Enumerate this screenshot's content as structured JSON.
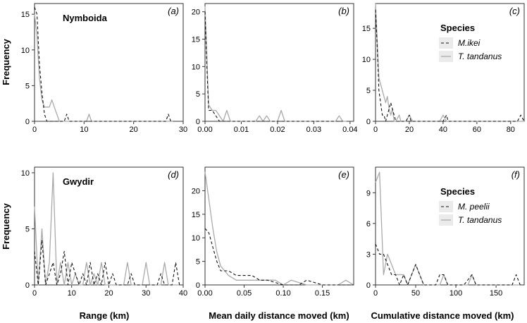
{
  "figure": {
    "ylabel_top": "Frequency",
    "ylabel_bottom": "Frequency",
    "xlabels": [
      "Range (km)",
      "Mean daily distance moved (km)",
      "Cumulative distance moved (km)"
    ]
  },
  "chart_data": [
    {
      "type": "line",
      "panel": "(a)",
      "site": "Nymboida",
      "xlim": [
        0,
        30
      ],
      "ylim": [
        0,
        16.5
      ],
      "xticks": [
        0,
        10,
        20,
        30
      ],
      "xtick_labels": [
        "0",
        "10",
        "20",
        "30"
      ],
      "yticks": [
        0,
        5,
        10,
        15
      ],
      "ytick_labels": [
        "0",
        "5",
        "10",
        "15"
      ],
      "series": [
        {
          "key": "A",
          "style": "dashed",
          "color": "#111111",
          "x": [
            0,
            0.5,
            1,
            1.5,
            2,
            2.5,
            3,
            3.5,
            4,
            4.5,
            5,
            5.5,
            6,
            6.5,
            7,
            7.5,
            8,
            8.5,
            9,
            9.5,
            10,
            10.5,
            11,
            11.5,
            12,
            26.5,
            27,
            27.5,
            28
          ],
          "y": [
            16,
            15,
            8,
            4,
            1,
            0,
            0,
            0,
            0,
            0,
            0,
            0,
            0,
            1,
            0,
            0,
            0,
            0,
            0,
            0,
            0,
            0,
            0,
            0,
            0,
            0,
            1,
            0,
            0
          ]
        },
        {
          "key": "B",
          "style": "solid",
          "color": "#aaaaaa",
          "x": [
            0,
            0.5,
            1,
            1.5,
            2,
            2.5,
            3,
            3.5,
            4,
            4.5,
            5,
            10.5,
            11,
            11.5,
            12,
            27,
            27.5,
            28
          ],
          "y": [
            15,
            12,
            6,
            3,
            2,
            2,
            2,
            3,
            2,
            1,
            0,
            0,
            1,
            0,
            0,
            0,
            0,
            0
          ]
        }
      ]
    },
    {
      "type": "line",
      "panel": "(b)",
      "xlim": [
        0,
        0.041
      ],
      "ylim": [
        0,
        21.5
      ],
      "xticks": [
        0,
        0.01,
        0.02,
        0.03,
        0.04
      ],
      "xtick_labels": [
        "0.00",
        "0.01",
        "0.02",
        "0.03",
        "0.04"
      ],
      "yticks": [
        0,
        5,
        10,
        15,
        20
      ],
      "ytick_labels": [
        "0",
        "5",
        "10",
        "15",
        "20"
      ],
      "series": [
        {
          "key": "A",
          "style": "dashed",
          "color": "#111111",
          "x": [
            0,
            0.0005,
            0.001,
            0.002,
            0.003,
            0.004,
            0.005,
            0.038
          ],
          "y": [
            20,
            10,
            2,
            2,
            1,
            0,
            0,
            0
          ]
        },
        {
          "key": "B",
          "style": "solid",
          "color": "#aaaaaa",
          "x": [
            0,
            0.0005,
            0.001,
            0.002,
            0.003,
            0.005,
            0.006,
            0.007,
            0.014,
            0.015,
            0.016,
            0.017,
            0.018,
            0.02,
            0.021,
            0.022,
            0.036,
            0.037,
            0.038,
            0.039
          ],
          "y": [
            21,
            12,
            3,
            2,
            2,
            0,
            2,
            0,
            0,
            1,
            0,
            1,
            0,
            0,
            2,
            0,
            0,
            1,
            0,
            0
          ]
        }
      ]
    },
    {
      "type": "line",
      "panel": "(c)",
      "xlim": [
        0,
        88
      ],
      "ylim": [
        0,
        19
      ],
      "xticks": [
        0,
        20,
        40,
        60,
        80
      ],
      "xtick_labels": [
        "0",
        "20",
        "40",
        "60",
        "80"
      ],
      "yticks": [
        0,
        5,
        10,
        15
      ],
      "ytick_labels": [
        "0",
        "5",
        "10",
        "15"
      ],
      "legend": {
        "title": "Species",
        "entries": [
          "M.ikei",
          "T. tandanus"
        ],
        "location": "top-right"
      },
      "series": [
        {
          "key": "A",
          "name": "M.ikei",
          "style": "dashed",
          "color": "#111111",
          "x": [
            0,
            1,
            2,
            3,
            4,
            5,
            6,
            7,
            8,
            9,
            10,
            11,
            12,
            18,
            20,
            21,
            22,
            38,
            40,
            42,
            43,
            44,
            84,
            86,
            88
          ],
          "y": [
            18,
            12,
            5,
            3,
            1,
            1,
            0,
            1,
            2,
            3,
            2,
            1,
            0,
            0,
            1,
            0,
            0,
            0,
            0,
            1,
            0,
            0,
            0,
            1,
            0
          ]
        },
        {
          "key": "B",
          "name": "T. tandanus",
          "style": "solid",
          "color": "#aaaaaa",
          "x": [
            0,
            1,
            2,
            3,
            4,
            5,
            6,
            7,
            8,
            9,
            10,
            11,
            12,
            14,
            15,
            16,
            18,
            20,
            22,
            23,
            38,
            40,
            42,
            44,
            88
          ],
          "y": [
            19,
            13,
            7,
            6,
            5,
            4,
            3,
            4,
            2,
            1,
            2,
            0,
            0,
            1,
            0,
            0,
            0,
            1,
            0,
            0,
            0,
            1,
            0,
            0,
            0
          ]
        }
      ]
    },
    {
      "type": "line",
      "panel": "(d)",
      "site": "Gwydir",
      "xlim": [
        0,
        40
      ],
      "ylim": [
        0,
        10.5
      ],
      "xticks": [
        0,
        10,
        20,
        30,
        40
      ],
      "xtick_labels": [
        "0",
        "10",
        "20",
        "30",
        "40"
      ],
      "yticks": [
        0,
        5,
        10
      ],
      "ytick_labels": [
        "0",
        "5",
        "10"
      ],
      "series": [
        {
          "key": "A",
          "style": "dashed",
          "color": "#111111",
          "x": [
            0,
            1,
            2,
            3,
            4,
            5,
            6,
            7,
            8,
            9,
            10,
            11,
            12,
            13,
            14,
            15,
            16,
            17,
            18,
            19,
            20,
            21,
            22,
            23,
            24,
            25,
            26,
            27,
            28,
            29,
            30,
            31,
            32,
            33,
            34,
            35,
            36,
            37,
            38,
            39
          ],
          "y": [
            3,
            0,
            4,
            0,
            1,
            2,
            0,
            1,
            3,
            0,
            2,
            1,
            0,
            1,
            0,
            2,
            0,
            1,
            0,
            2,
            0,
            1,
            0,
            0,
            0,
            0,
            1,
            0,
            0,
            0,
            0,
            0,
            0,
            0,
            1,
            0,
            0,
            0,
            2,
            0
          ]
        },
        {
          "key": "B",
          "style": "solid",
          "color": "#aaaaaa",
          "x": [
            0,
            1,
            2,
            3,
            4,
            5,
            6,
            7,
            8,
            9,
            10,
            11,
            12,
            13,
            14,
            15,
            16,
            17,
            18,
            19,
            20,
            21,
            22,
            23,
            24,
            25,
            26,
            27,
            28,
            29,
            30,
            31,
            32,
            33,
            34,
            35,
            36,
            37,
            38,
            39
          ],
          "y": [
            7,
            0,
            5,
            0,
            2,
            10,
            0,
            2,
            0,
            2,
            0,
            1,
            0,
            0,
            2,
            0,
            1,
            0,
            2,
            0,
            0,
            0,
            0,
            0,
            0,
            2,
            0,
            0,
            0,
            0,
            2,
            0,
            0,
            0,
            0,
            2,
            0,
            0,
            0,
            0
          ]
        }
      ]
    },
    {
      "type": "line",
      "panel": "(e)",
      "xlim": [
        0,
        0.19
      ],
      "ylim": [
        0,
        25
      ],
      "xticks": [
        0,
        0.05,
        0.1,
        0.15
      ],
      "xtick_labels": [
        "0.00",
        "0.05",
        "0.10",
        "0.15"
      ],
      "yticks": [
        0,
        5,
        10,
        15,
        20
      ],
      "ytick_labels": [
        "0",
        "5",
        "10",
        "15",
        "20"
      ],
      "series": [
        {
          "key": "A",
          "style": "dashed",
          "color": "#111111",
          "x": [
            0,
            0.005,
            0.01,
            0.015,
            0.02,
            0.03,
            0.04,
            0.05,
            0.06,
            0.07,
            0.08,
            0.1,
            0.12,
            0.13,
            0.15,
            0.19
          ],
          "y": [
            12,
            11,
            8,
            5,
            3,
            3,
            2,
            2,
            2,
            1,
            1,
            0,
            0,
            1,
            0,
            0
          ]
        },
        {
          "key": "B",
          "style": "solid",
          "color": "#aaaaaa",
          "x": [
            0,
            0.005,
            0.01,
            0.015,
            0.02,
            0.025,
            0.03,
            0.04,
            0.05,
            0.06,
            0.07,
            0.08,
            0.09,
            0.1,
            0.11,
            0.13,
            0.15,
            0.17,
            0.18,
            0.19
          ],
          "y": [
            24,
            18,
            12,
            7,
            4,
            3,
            2,
            1,
            1,
            1,
            1,
            1,
            1,
            0,
            1,
            0,
            0,
            0,
            1,
            0
          ]
        }
      ]
    },
    {
      "type": "line",
      "panel": "(f)",
      "xlim": [
        0,
        185
      ],
      "ylim": [
        0,
        11.5
      ],
      "xticks": [
        0,
        50,
        100,
        150
      ],
      "xtick_labels": [
        "0",
        "50",
        "100",
        "150"
      ],
      "yticks": [
        0,
        3,
        6,
        9
      ],
      "ytick_labels": [
        "0",
        "3",
        "6",
        "9"
      ],
      "legend": {
        "title": "Species",
        "entries": [
          "M. peelii",
          "T. tandanus"
        ],
        "location": "top-right"
      },
      "series": [
        {
          "key": "A",
          "name": "M. peelii",
          "style": "dashed",
          "color": "#111111",
          "x": [
            0,
            5,
            10,
            15,
            20,
            25,
            30,
            35,
            40,
            45,
            50,
            55,
            60,
            65,
            70,
            75,
            80,
            85,
            90,
            95,
            100,
            110,
            120,
            125,
            170,
            175,
            180
          ],
          "y": [
            4,
            3,
            3,
            2,
            1,
            1,
            0,
            1,
            0,
            1,
            2,
            1,
            0,
            0,
            0,
            0,
            1,
            1,
            0,
            0,
            0,
            0,
            1,
            0,
            0,
            1,
            0
          ]
        },
        {
          "key": "B",
          "name": "T. tandanus",
          "style": "solid",
          "color": "#aaaaaa",
          "x": [
            0,
            5,
            10,
            15,
            20,
            25,
            30,
            35,
            40,
            45,
            50,
            55,
            60,
            65,
            70,
            75,
            80,
            85,
            90,
            100,
            110,
            115,
            120,
            125,
            180
          ],
          "y": [
            10,
            11,
            1,
            3,
            2,
            1,
            1,
            1,
            0,
            1,
            2,
            1,
            0,
            0,
            0,
            0,
            0,
            1,
            0,
            0,
            0,
            0,
            1,
            0,
            0
          ]
        }
      ]
    }
  ]
}
